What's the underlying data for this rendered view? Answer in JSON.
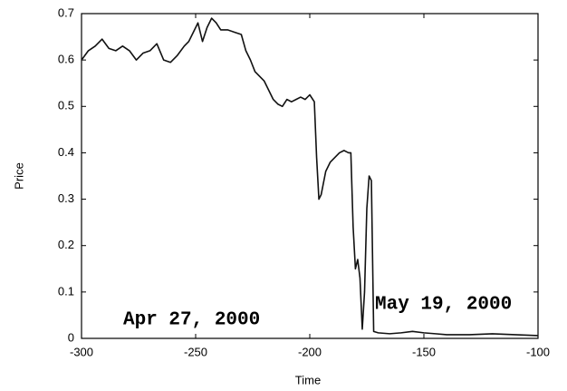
{
  "chart_data": {
    "type": "line",
    "x_label": "Time",
    "y_label": "Price",
    "annotations": [
      "Apr 27, 2000",
      "May 19, 2000"
    ],
    "color": "#111111",
    "grid": false,
    "xlim": [
      -300,
      -100
    ],
    "xticks": [
      -300,
      -250,
      -200,
      -150,
      -100
    ],
    "ylim": [
      0,
      0.7
    ],
    "yticks": [
      0,
      0.1,
      0.2,
      0.3,
      0.4,
      0.5,
      0.6,
      0.7
    ],
    "x": [
      -300,
      -297,
      -294,
      -291,
      -288,
      -285,
      -282,
      -279,
      -276,
      -273,
      -270,
      -267,
      -264,
      -261,
      -258,
      -255,
      -253,
      -251,
      -249,
      -247,
      -245,
      -243,
      -241,
      -239,
      -236,
      -233,
      -230,
      -228,
      -226,
      -224,
      -222,
      -220,
      -218,
      -216,
      -214,
      -212,
      -210,
      -208,
      -206,
      -204,
      -202,
      -200,
      -198,
      -197,
      -196,
      -195,
      -193,
      -191,
      -189,
      -187,
      -185,
      -183,
      -182,
      -181,
      -180,
      -179,
      -178,
      -177,
      -176,
      -175,
      -174,
      -173,
      -172,
      -170,
      -165,
      -160,
      -155,
      -150,
      -145,
      -140,
      -130,
      -120,
      -110,
      -100
    ],
    "values": [
      0.6,
      0.62,
      0.63,
      0.645,
      0.625,
      0.62,
      0.63,
      0.62,
      0.6,
      0.615,
      0.62,
      0.635,
      0.6,
      0.595,
      0.61,
      0.63,
      0.64,
      0.66,
      0.68,
      0.64,
      0.67,
      0.69,
      0.68,
      0.665,
      0.665,
      0.66,
      0.655,
      0.62,
      0.6,
      0.575,
      0.565,
      0.555,
      0.535,
      0.515,
      0.505,
      0.5,
      0.515,
      0.51,
      0.515,
      0.52,
      0.515,
      0.525,
      0.51,
      0.39,
      0.3,
      0.31,
      0.36,
      0.38,
      0.39,
      0.4,
      0.405,
      0.4,
      0.4,
      0.24,
      0.15,
      0.17,
      0.13,
      0.02,
      0.1,
      0.28,
      0.35,
      0.34,
      0.015,
      0.012,
      0.01,
      0.012,
      0.015,
      0.012,
      0.01,
      0.008,
      0.008,
      0.01,
      0.008,
      0.006
    ]
  }
}
